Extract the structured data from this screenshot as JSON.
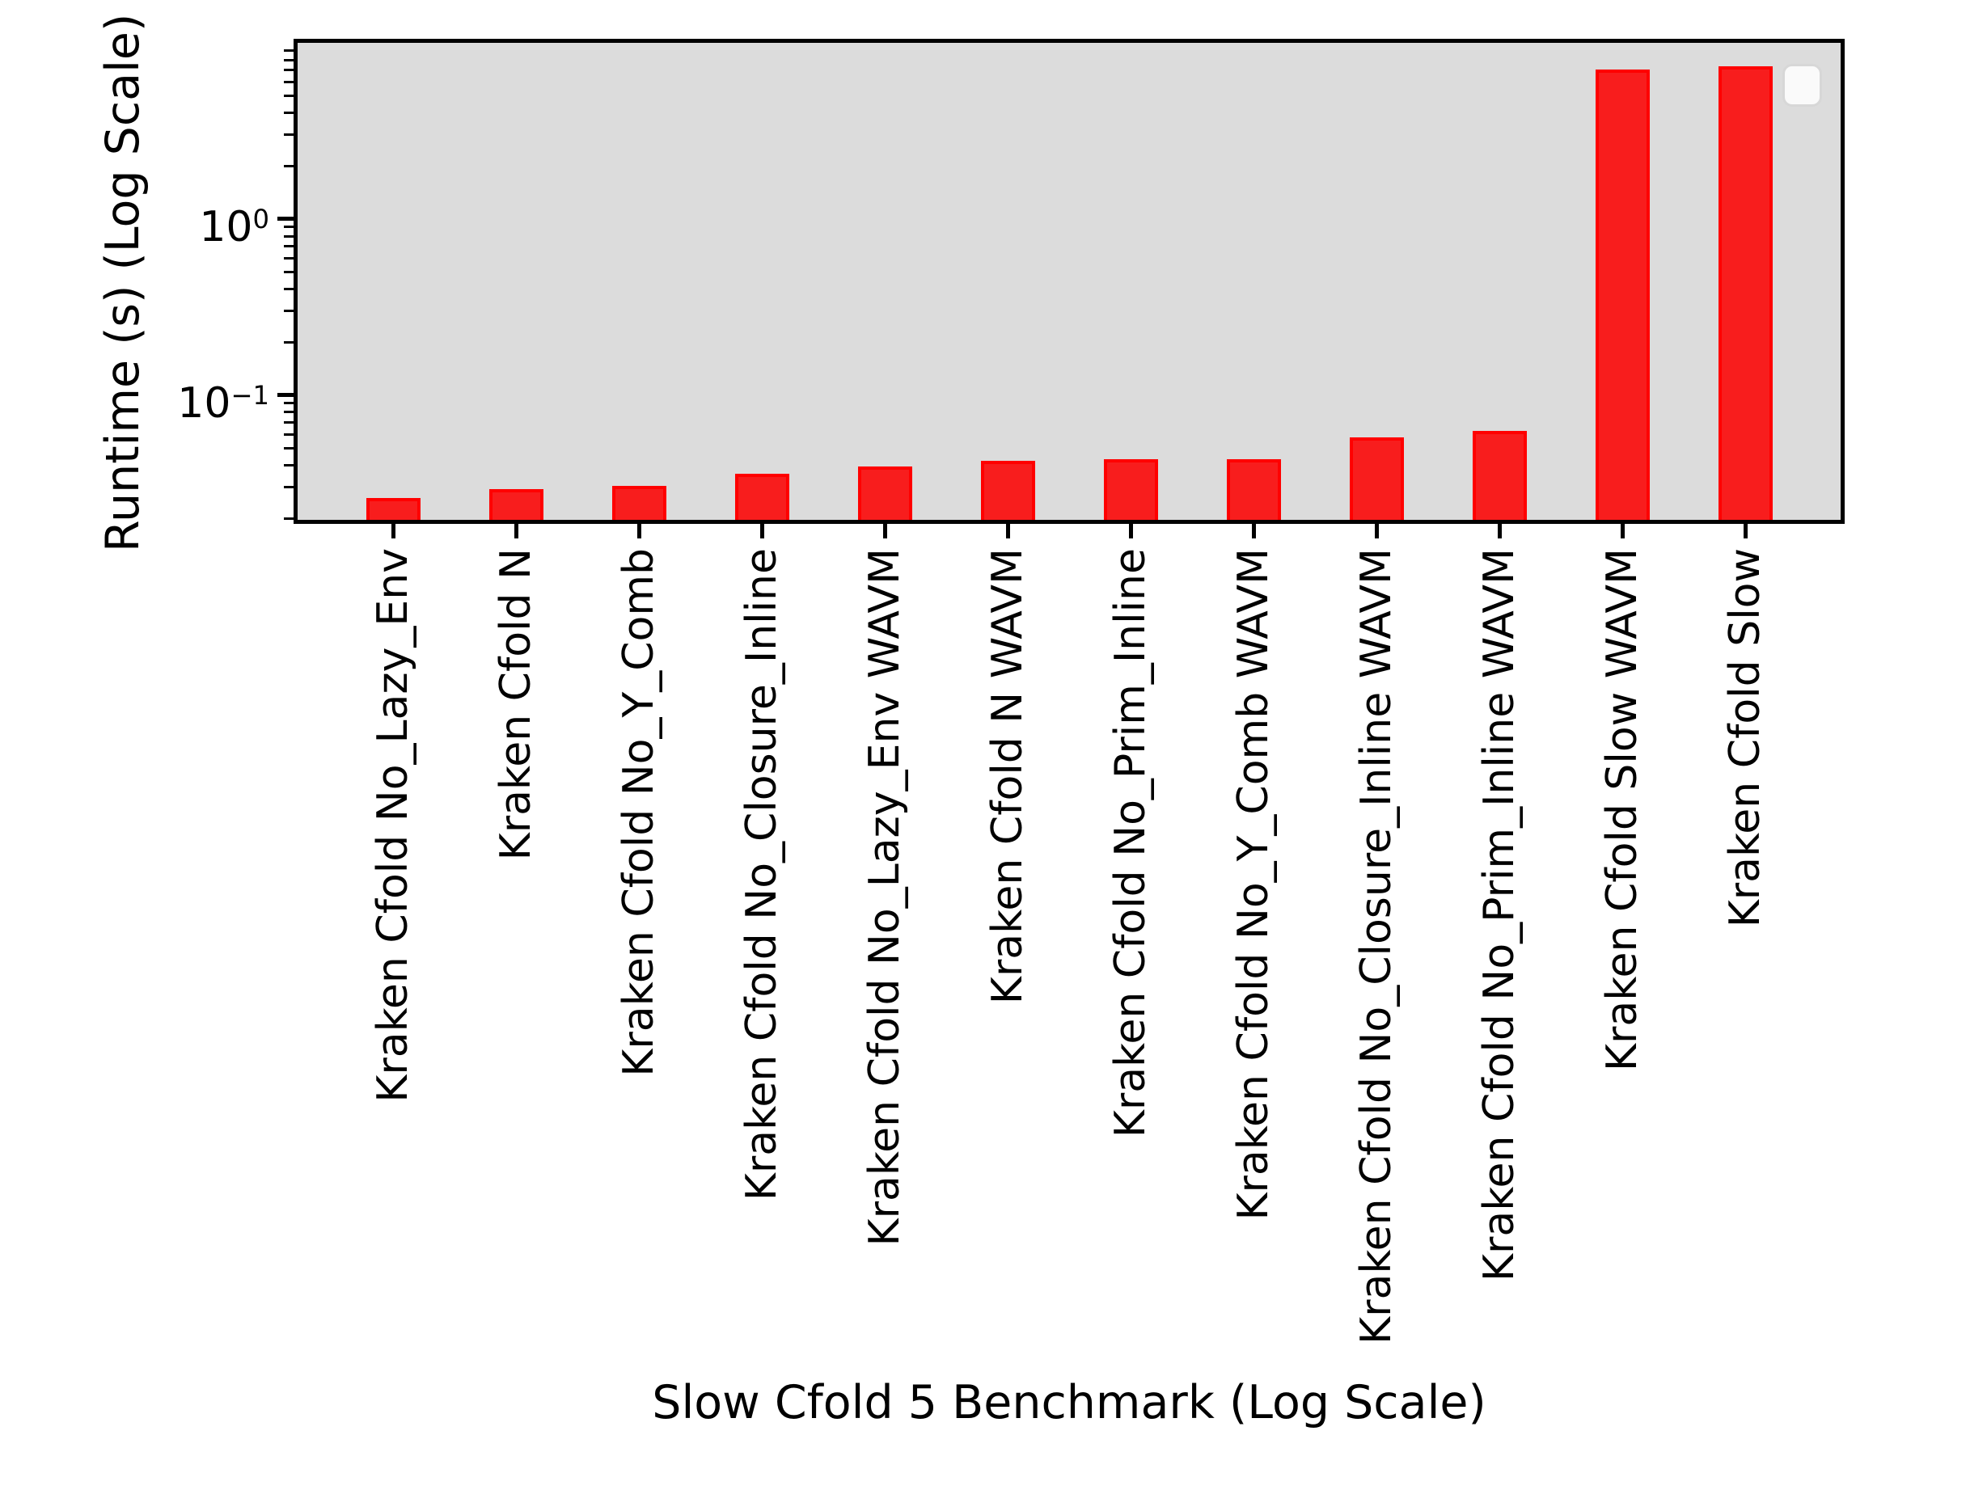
{
  "chart_data": {
    "type": "bar",
    "title": "",
    "xlabel": "Slow Cfold 5 Benchmark (Log Scale)",
    "ylabel": "Runtime (s) (Log Scale)",
    "categories": [
      "Kraken Cfold No_Lazy_Env",
      "Kraken Cfold N",
      "Kraken Cfold No_Y_Comb",
      "Kraken Cfold No_Closure_Inline",
      "Kraken Cfold No_Lazy_Env WAVM",
      "Kraken Cfold N WAVM",
      "Kraken Cfold No_Prim_Inline",
      "Kraken Cfold No_Y_Comb WAVM",
      "Kraken Cfold No_Closure_Inline WAVM",
      "Kraken Cfold No_Prim_Inline WAVM",
      "Kraken Cfold Slow WAVM",
      "Kraken Cfold Slow"
    ],
    "values": [
      0.0261,
      0.0293,
      0.0304,
      0.0359,
      0.0395,
      0.0425,
      0.0433,
      0.0435,
      0.0573,
      0.0627,
      7.08,
      7.36
    ],
    "unit": "s",
    "yscale": "log",
    "ylim": [
      0.0196,
      10
    ],
    "yticks": [
      {
        "value": 1,
        "base": "10",
        "exp": "0"
      },
      {
        "value": 0.1,
        "base": "10",
        "exp": "−1"
      }
    ],
    "grid": false,
    "legend": {
      "visible": true,
      "entries": []
    },
    "colors": {
      "bar_fill": "#f81d1d",
      "bar_edge": "#ff0000",
      "plot_background": "#dcdcdc",
      "spine": "#000000",
      "text": "#000000"
    }
  }
}
